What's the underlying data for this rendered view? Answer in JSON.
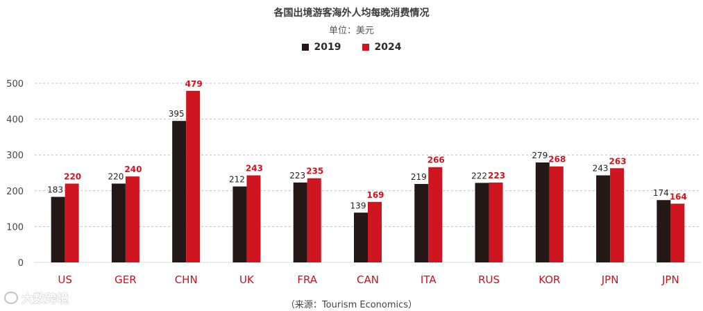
{
  "colors": {
    "series_2019": "#231816",
    "series_2024": "#cf1520",
    "grid": "#bfbfbf",
    "axis_text": "#444444",
    "category_text": "#c0161f"
  },
  "watermark": {
    "text": "大数跨境"
  },
  "chart_data": {
    "type": "bar",
    "title": "各国出境游客海外人均每晚消费情况",
    "subtitle": "单位：美元",
    "source": "（来源：Tourism Economics）",
    "categories": [
      "US",
      "GER",
      "CHN",
      "UK",
      "FRA",
      "CAN",
      "ITA",
      "RUS",
      "KOR",
      "JPN",
      "JPN"
    ],
    "series": [
      {
        "name": "2019",
        "values": [
          183,
          220,
          395,
          212,
          223,
          139,
          219,
          222,
          279,
          243,
          174
        ]
      },
      {
        "name": "2024",
        "values": [
          220,
          240,
          479,
          243,
          235,
          169,
          266,
          223,
          268,
          263,
          164
        ]
      }
    ],
    "ylim": [
      0,
      500
    ],
    "yticks": [
      0,
      100,
      200,
      300,
      400,
      500
    ],
    "grid": true,
    "legend_position": "top-center"
  }
}
